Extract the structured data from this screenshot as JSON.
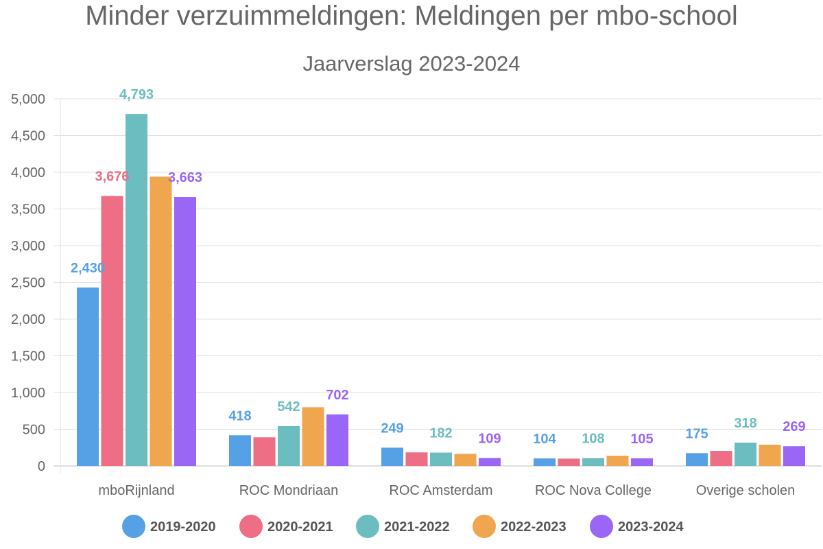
{
  "chart_data": {
    "type": "bar",
    "title": "Minder verzuimmeldingen: Meldingen per mbo-school",
    "subtitle": "Jaarverslag 2023-2024",
    "xlabel": "",
    "ylabel": "",
    "ylim": [
      0,
      5000
    ],
    "yticks": [
      0,
      500,
      1000,
      1500,
      2000,
      2500,
      3000,
      3500,
      4000,
      4500,
      5000
    ],
    "ytick_labels": [
      "0",
      "500",
      "1,000",
      "1,500",
      "2,000",
      "2,500",
      "3,000",
      "3,500",
      "4,000",
      "4,500",
      "5,000"
    ],
    "grid": true,
    "legend_position": "bottom",
    "categories": [
      "mboRijnland",
      "ROC Mondriaan",
      "ROC Amsterdam",
      "ROC Nova College",
      "Overige scholen"
    ],
    "series": [
      {
        "name": "2019-2020",
        "color": "#56A1E6",
        "values": [
          2430,
          418,
          249,
          104,
          175
        ],
        "labels": [
          "2,430",
          "418",
          "249",
          "104",
          "175"
        ]
      },
      {
        "name": "2020-2021",
        "color": "#ED6E85",
        "values": [
          3676,
          390,
          185,
          100,
          205
        ],
        "labels": [
          "3,676",
          "",
          "",
          "",
          ""
        ]
      },
      {
        "name": "2021-2022",
        "color": "#6CBDBF",
        "values": [
          4793,
          542,
          182,
          108,
          318
        ],
        "labels": [
          "4,793",
          "542",
          "182",
          "108",
          "318"
        ]
      },
      {
        "name": "2022-2023",
        "color": "#F0A54F",
        "values": [
          3940,
          800,
          165,
          140,
          290
        ],
        "labels": [
          "",
          "",
          "",
          "",
          ""
        ]
      },
      {
        "name": "2023-2024",
        "color": "#9966F6",
        "values": [
          3663,
          702,
          109,
          105,
          269
        ],
        "labels": [
          "3,663",
          "702",
          "109",
          "105",
          "269"
        ]
      }
    ]
  }
}
